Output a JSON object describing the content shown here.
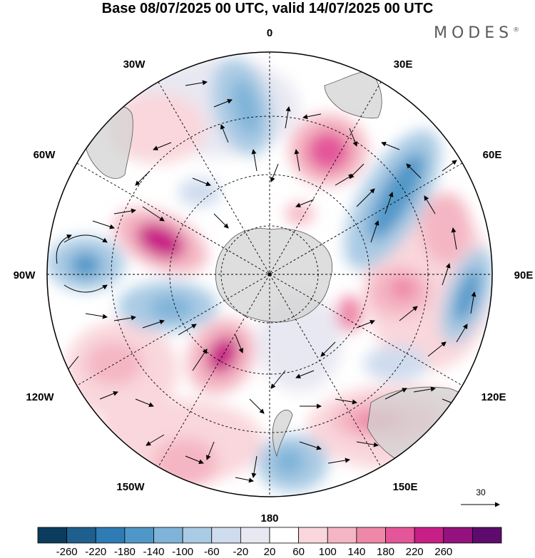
{
  "title": "Base 08/07/2025 00 UTC, valid 14/07/2025 00 UTC",
  "brand": {
    "name": "MODES",
    "mark": "®"
  },
  "map": {
    "projection": "south-polar-stereographic",
    "longitude_labels": {
      "top": "0",
      "bottom": "180",
      "left": "90W",
      "right": "90E",
      "upper_left": "30W",
      "upper_right": "30E",
      "mid_left_upper": "60W",
      "mid_right_upper": "60E",
      "mid_left_lower": "120W",
      "mid_right_lower": "120E",
      "lower_left": "150W",
      "lower_right": "150E"
    },
    "reference_vector": {
      "label": "30"
    }
  },
  "colorbar": {
    "colors": [
      "#0b3c5d",
      "#1f5f8e",
      "#2f7bb4",
      "#4f97c8",
      "#7fb3d8",
      "#aacbe4",
      "#cfdcee",
      "#e8e8f2",
      "#ffffff",
      "#f9d7dc",
      "#f4b6c2",
      "#ee87a8",
      "#e4569a",
      "#c81f86",
      "#93127d",
      "#5e0b6e"
    ],
    "labels": [
      "-260",
      "-220",
      "-180",
      "-140",
      "-100",
      "-60",
      "-20",
      "20",
      "60",
      "100",
      "140",
      "180",
      "220",
      "260"
    ]
  },
  "colors": {
    "land": "#d3d3d3",
    "outline": "#000000"
  }
}
